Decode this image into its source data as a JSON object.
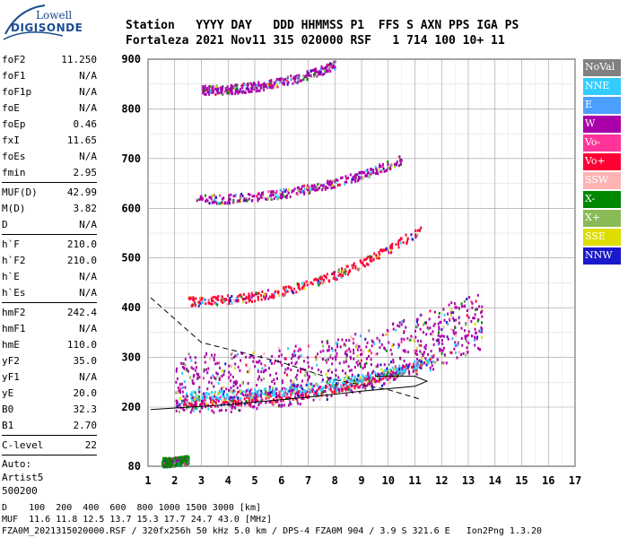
{
  "logo": {
    "line1": "Lowell",
    "line2": "DIGISONDE"
  },
  "header": {
    "line1": "Station   YYYY DAY   DDD HHMMSS P1  FFS S AXN PPS IGA PS",
    "line2": "Fortaleza 2021 Nov11 315 020000 RSF   1 714 100 10+ 11"
  },
  "params": {
    "group1": [
      {
        "k": "foF2",
        "v": "11.250"
      },
      {
        "k": "foF1",
        "v": "N/A"
      },
      {
        "k": "foF1p",
        "v": "N/A"
      },
      {
        "k": "foE",
        "v": "N/A"
      },
      {
        "k": "foEp",
        "v": "0.46"
      },
      {
        "k": "fxI",
        "v": "11.65"
      },
      {
        "k": "foEs",
        "v": "N/A"
      },
      {
        "k": "fmin",
        "v": "2.95"
      }
    ],
    "group2": [
      {
        "k": "MUF(D)",
        "v": "42.99"
      },
      {
        "k": "M(D)",
        "v": "3.82"
      },
      {
        "k": "D",
        "v": "N/A"
      }
    ],
    "group3": [
      {
        "k": "h`F",
        "v": "210.0"
      },
      {
        "k": "h`F2",
        "v": "210.0"
      },
      {
        "k": "h`E",
        "v": "N/A"
      },
      {
        "k": "h`Es",
        "v": "N/A"
      }
    ],
    "group4": [
      {
        "k": "hmF2",
        "v": "242.4"
      },
      {
        "k": "hmF1",
        "v": "N/A"
      },
      {
        "k": "hmE",
        "v": "110.0"
      },
      {
        "k": "yF2",
        "v": "35.0"
      },
      {
        "k": "yF1",
        "v": "N/A"
      },
      {
        "k": "yE",
        "v": "20.0"
      },
      {
        "k": "B0",
        "v": "32.3"
      },
      {
        "k": "B1",
        "v": "2.70"
      }
    ],
    "group5": [
      {
        "k": "C-level",
        "v": "22"
      }
    ],
    "auto": [
      "Auto:",
      "Artist5",
      "500200"
    ]
  },
  "legend": [
    {
      "label": "NoVal",
      "color": "#808080"
    },
    {
      "label": "NNE",
      "color": "#33ccff"
    },
    {
      "label": "E",
      "color": "#4d9fff"
    },
    {
      "label": "W",
      "color": "#aa00aa"
    },
    {
      "label": "Vo-",
      "color": "#ff3399"
    },
    {
      "label": "Vo+",
      "color": "#ff0033"
    },
    {
      "label": "SSW",
      "color": "#ffb3b3"
    },
    {
      "label": "X-",
      "color": "#008800"
    },
    {
      "label": "X+",
      "color": "#88bb55"
    },
    {
      "label": "SSE",
      "color": "#dddd00"
    },
    {
      "label": "NNW",
      "color": "#1a1acc"
    }
  ],
  "footer": {
    "line1": "D    100  200  400  600  800 1000 1500 3000 [km]",
    "line2": "MUF  11.6 11.8 12.5 13.7 15.3 17.7 24.7 43.0 [MHz]",
    "line3": "FZA0M_2021315020000.RSF / 320fx256h 50 kHz 5.0 km / DPS-4 FZA0M 904 / 3.9 S 321.6 E   Ion2Png 1.3.20"
  },
  "chart_data": {
    "type": "scatter",
    "xlim": [
      1,
      17
    ],
    "ylim": [
      80,
      900
    ],
    "x_ticks": [
      1,
      2,
      3,
      4,
      5,
      6,
      7,
      8,
      9,
      10,
      11,
      12,
      13,
      14,
      15,
      16,
      17
    ],
    "y_ticks": [
      80,
      200,
      300,
      400,
      500,
      600,
      700,
      800,
      900
    ],
    "grid": true,
    "traces": [
      {
        "name": "F-layer o-trace",
        "color": "#ff0033",
        "x_range": [
          2.0,
          11.3
        ],
        "h_start": 210,
        "h_end": 290
      },
      {
        "name": "F-layer x-trace",
        "color": "#33ccff",
        "x_range": [
          2.3,
          11.7
        ],
        "h_start": 225,
        "h_end": 300
      },
      {
        "name": "2nd hop",
        "color": "#ff0033",
        "x_range": [
          2.5,
          11.2
        ],
        "h_start": 415,
        "h_end": 560
      },
      {
        "name": "3rd hop",
        "color": "#aa00aa",
        "x_range": [
          2.8,
          10.5
        ],
        "h_start": 620,
        "h_end": 700
      },
      {
        "name": "4th hop",
        "color": "#aa00aa",
        "x_range": [
          3.0,
          8.0
        ],
        "h_start": 840,
        "h_end": 890
      },
      {
        "name": "spread F",
        "color": "#aa00aa",
        "x_range": [
          2.0,
          13.5
        ],
        "h_start": 250,
        "h_end": 380
      },
      {
        "name": "E trace",
        "color": "#008800",
        "x_range": [
          1.5,
          2.5
        ],
        "h_start": 90,
        "h_end": 95
      }
    ],
    "profile": {
      "dashed": [
        [
          1.1,
          420
        ],
        [
          3.0,
          330
        ],
        [
          6.0,
          290
        ],
        [
          8.0,
          255
        ],
        [
          10.0,
          235
        ],
        [
          11.25,
          215
        ]
      ],
      "solid": [
        [
          1.1,
          195
        ],
        [
          4.0,
          205
        ],
        [
          7.0,
          220
        ],
        [
          9.0,
          232
        ],
        [
          11.0,
          242
        ],
        [
          11.45,
          252
        ],
        [
          11.0,
          262
        ],
        [
          9.5,
          262
        ]
      ]
    }
  }
}
